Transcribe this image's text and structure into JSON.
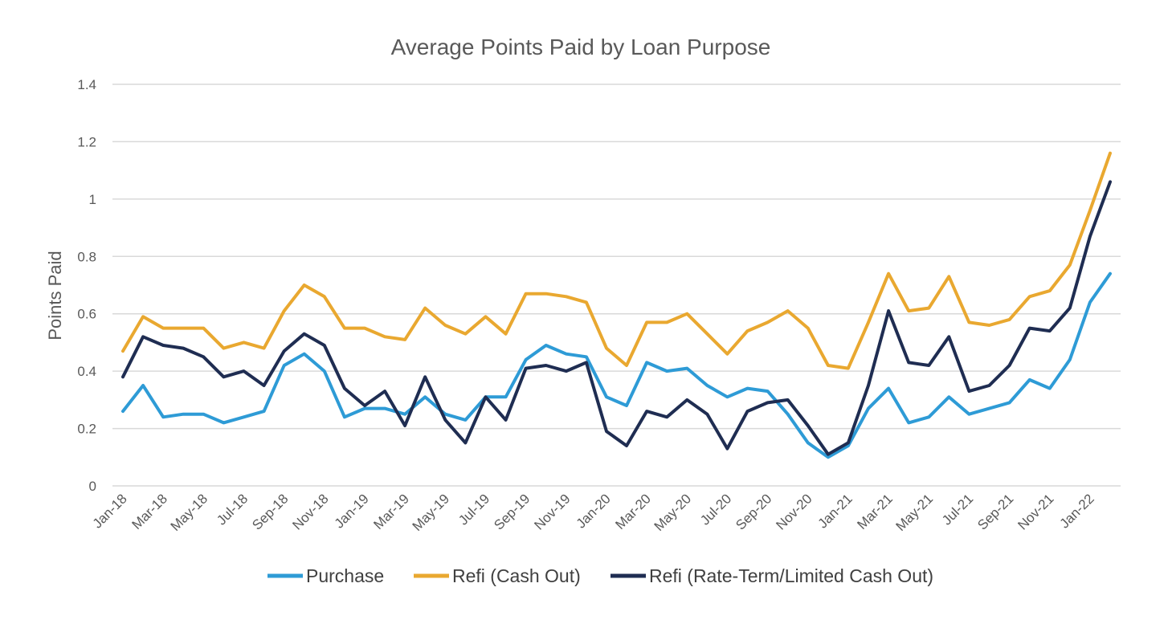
{
  "chart_data": {
    "type": "line",
    "title": "Average Points Paid by Loan Purpose",
    "xlabel": "",
    "ylabel": "Points Paid",
    "ylim": [
      0,
      1.4
    ],
    "yticks": [
      "0",
      "0.2",
      "0.4",
      "0.6",
      "0.8",
      "1",
      "1.2",
      "1.4"
    ],
    "grid": true,
    "legend_position": "bottom",
    "x": [
      "Jan-18",
      "Feb-18",
      "Mar-18",
      "Apr-18",
      "May-18",
      "Jun-18",
      "Jul-18",
      "Aug-18",
      "Sep-18",
      "Oct-18",
      "Nov-18",
      "Dec-18",
      "Jan-19",
      "Feb-19",
      "Mar-19",
      "Apr-19",
      "May-19",
      "Jun-19",
      "Jul-19",
      "Aug-19",
      "Sep-19",
      "Oct-19",
      "Nov-19",
      "Dec-19",
      "Jan-20",
      "Feb-20",
      "Mar-20",
      "Apr-20",
      "May-20",
      "Jun-20",
      "Jul-20",
      "Aug-20",
      "Sep-20",
      "Oct-20",
      "Nov-20",
      "Dec-20",
      "Jan-21",
      "Feb-21",
      "Mar-21",
      "Apr-21",
      "May-21",
      "Jun-21",
      "Jul-21",
      "Aug-21",
      "Sep-21",
      "Oct-21",
      "Nov-21",
      "Dec-21",
      "Jan-22",
      "Feb-22"
    ],
    "xtick_labels": [
      "Jan-18",
      "Mar-18",
      "May-18",
      "Jul-18",
      "Sep-18",
      "Nov-18",
      "Jan-19",
      "Mar-19",
      "May-19",
      "Jul-19",
      "Sep-19",
      "Nov-19",
      "Jan-20",
      "Mar-20",
      "May-20",
      "Jul-20",
      "Sep-20",
      "Nov-20",
      "Jan-21",
      "Mar-21",
      "May-21",
      "Jul-21",
      "Sep-21",
      "Nov-21",
      "Jan-22"
    ],
    "series": [
      {
        "name": "Purchase",
        "color": "#2e9bd6",
        "values": [
          0.26,
          0.35,
          0.24,
          0.25,
          0.25,
          0.22,
          0.24,
          0.26,
          0.42,
          0.46,
          0.4,
          0.24,
          0.27,
          0.27,
          0.25,
          0.31,
          0.25,
          0.23,
          0.31,
          0.31,
          0.44,
          0.49,
          0.46,
          0.45,
          0.31,
          0.28,
          0.43,
          0.4,
          0.41,
          0.35,
          0.31,
          0.34,
          0.33,
          0.25,
          0.15,
          0.1,
          0.14,
          0.27,
          0.34,
          0.22,
          0.24,
          0.31,
          0.25,
          0.27,
          0.29,
          0.37,
          0.34,
          0.44,
          0.64,
          0.74
        ]
      },
      {
        "name": "Refi (Cash Out)",
        "color": "#e9a830",
        "values": [
          0.47,
          0.59,
          0.55,
          0.55,
          0.55,
          0.48,
          0.5,
          0.48,
          0.61,
          0.7,
          0.66,
          0.55,
          0.55,
          0.52,
          0.51,
          0.62,
          0.56,
          0.53,
          0.59,
          0.53,
          0.67,
          0.67,
          0.66,
          0.64,
          0.48,
          0.42,
          0.57,
          0.57,
          0.6,
          0.53,
          0.46,
          0.54,
          0.57,
          0.61,
          0.55,
          0.42,
          0.41,
          0.57,
          0.74,
          0.61,
          0.62,
          0.73,
          0.57,
          0.56,
          0.58,
          0.66,
          0.68,
          0.77,
          0.96,
          1.16
        ]
      },
      {
        "name": "Refi (Rate-Term/Limited Cash Out)",
        "color": "#1f2d52",
        "values": [
          0.38,
          0.52,
          0.49,
          0.48,
          0.45,
          0.38,
          0.4,
          0.35,
          0.47,
          0.53,
          0.49,
          0.34,
          0.28,
          0.33,
          0.21,
          0.38,
          0.23,
          0.15,
          0.31,
          0.23,
          0.41,
          0.42,
          0.4,
          0.43,
          0.19,
          0.14,
          0.26,
          0.24,
          0.3,
          0.25,
          0.13,
          0.26,
          0.29,
          0.3,
          0.21,
          0.11,
          0.15,
          0.35,
          0.61,
          0.43,
          0.42,
          0.52,
          0.33,
          0.35,
          0.42,
          0.55,
          0.54,
          0.62,
          0.87,
          1.06
        ]
      }
    ]
  }
}
